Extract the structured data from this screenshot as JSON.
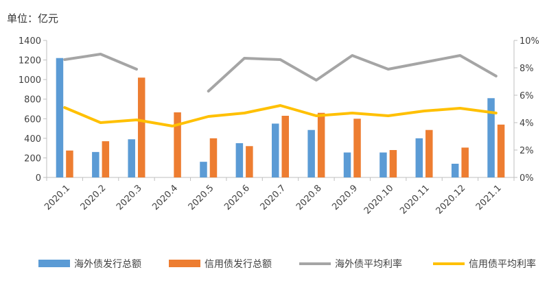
{
  "unit_label": "单位：亿元",
  "chart_data": {
    "type": "bar",
    "categories": [
      "2020.1",
      "2020.2",
      "2020.3",
      "2020.4",
      "2020.5",
      "2020.6",
      "2020.7",
      "2020.8",
      "2020.9",
      "2020.10",
      "2020.11",
      "2020.12",
      "2021.1"
    ],
    "bar_series": [
      {
        "name": "海外债发行总额",
        "color": "#5b9bd5",
        "values": [
          1220,
          260,
          390,
          null,
          160,
          350,
          550,
          485,
          255,
          255,
          400,
          140,
          810
        ]
      },
      {
        "name": "信用债发行总额",
        "color": "#ed7d31",
        "values": [
          275,
          370,
          1020,
          665,
          400,
          320,
          630,
          660,
          600,
          280,
          485,
          305,
          540
        ]
      }
    ],
    "line_series": [
      {
        "name": "海外债平均利率",
        "color": "#a5a5a5",
        "values": [
          8.6,
          9.0,
          7.9,
          null,
          6.3,
          8.7,
          8.6,
          7.1,
          8.9,
          7.9,
          8.4,
          8.9,
          7.4
        ]
      },
      {
        "name": "信用债平均利率",
        "color": "#ffc000",
        "values": [
          5.1,
          4.0,
          4.2,
          3.75,
          4.45,
          4.7,
          5.25,
          4.5,
          4.7,
          4.5,
          4.85,
          5.05,
          4.7
        ]
      }
    ],
    "y_left": {
      "ylim": [
        0,
        1400
      ],
      "ticks": [
        "0",
        "200",
        "400",
        "600",
        "800",
        "1000",
        "1200",
        "1400"
      ]
    },
    "y_right": {
      "ylim": [
        0,
        10
      ],
      "ticks": [
        "0%",
        "2%",
        "4%",
        "6%",
        "8%",
        "10%"
      ]
    },
    "legend_position": "bottom",
    "grid": false
  }
}
